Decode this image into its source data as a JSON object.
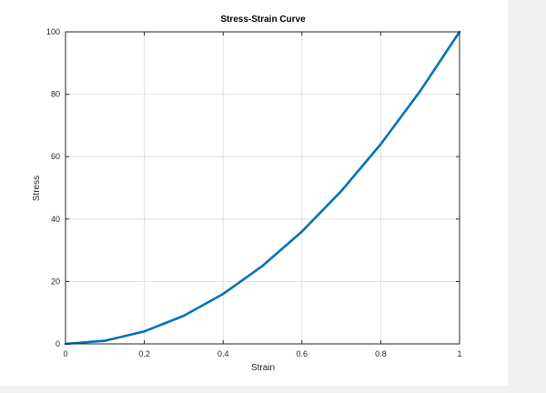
{
  "chart_data": {
    "type": "line",
    "title": "Stress-Strain Curve",
    "xlabel": "Strain",
    "ylabel": "Stress",
    "xlim": [
      0,
      1
    ],
    "ylim": [
      0,
      100
    ],
    "xticks": [
      0,
      0.2,
      0.4,
      0.6,
      0.8,
      1
    ],
    "xtick_labels": [
      "0",
      "0.2",
      "0.4",
      "0.6",
      "0.8",
      "1"
    ],
    "yticks": [
      0,
      20,
      40,
      60,
      80,
      100
    ],
    "ytick_labels": [
      "0",
      "20",
      "40",
      "60",
      "80",
      "100"
    ],
    "grid": true,
    "legend": "none",
    "series": [
      {
        "color": "#0072bd",
        "x": [
          0,
          0.1,
          0.2,
          0.3,
          0.4,
          0.5,
          0.6,
          0.7,
          0.8,
          0.9,
          1.0
        ],
        "y": [
          0,
          1,
          4,
          9,
          16,
          25,
          36,
          49,
          64,
          81,
          100
        ]
      }
    ]
  }
}
